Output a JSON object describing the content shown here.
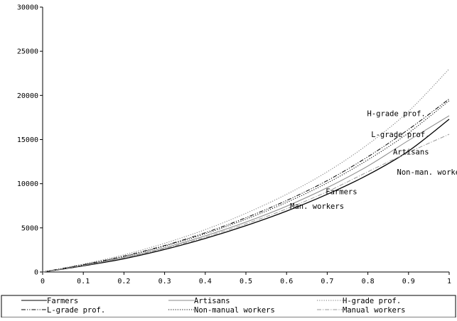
{
  "chart_data": {
    "type": "line",
    "title": "",
    "xlabel": "",
    "ylabel": "",
    "xlim": [
      0,
      1
    ],
    "ylim": [
      0,
      30000
    ],
    "x_ticks": [
      "0",
      "0.1",
      "0.2",
      "0.3",
      "0.4",
      "0.5",
      "0.6",
      "0.7",
      "0.8",
      "0.9",
      "1"
    ],
    "y_ticks": [
      "0",
      "5000",
      "10000",
      "15000",
      "20000",
      "25000",
      "30000"
    ],
    "grid": false,
    "legend_position": "bottom",
    "x": [
      0,
      0.1,
      0.2,
      0.3,
      0.4,
      0.5,
      0.6,
      0.7,
      0.8,
      0.9,
      1.0
    ],
    "series": [
      {
        "name": "Farmers",
        "color": "#000000",
        "dash": "solid",
        "values": [
          0,
          700,
          1500,
          2550,
          3800,
          5250,
          6900,
          8800,
          11000,
          13700,
          17300
        ]
      },
      {
        "name": "Artisans",
        "color": "#888888",
        "dash": "solid",
        "values": [
          0,
          760,
          1650,
          2750,
          4100,
          5650,
          7450,
          9550,
          12000,
          14900,
          17700
        ]
      },
      {
        "name": "H-grade prof.",
        "color": "#777777",
        "dash": "dotted",
        "values": [
          0,
          900,
          1950,
          3250,
          4800,
          6650,
          8800,
          11350,
          14450,
          18200,
          23000
        ]
      },
      {
        "name": "L-grade prof.",
        "color": "#000000",
        "dash": "dashdotdot",
        "values": [
          0,
          830,
          1800,
          3000,
          4450,
          6150,
          8100,
          10350,
          13050,
          16150,
          19600
        ]
      },
      {
        "name": "Non-manual workers",
        "color": "#000000",
        "dash": "dotted",
        "values": [
          0,
          810,
          1760,
          2930,
          4330,
          5980,
          7880,
          10080,
          12700,
          15750,
          19400
        ]
      },
      {
        "name": "Manual workers",
        "color": "#999999",
        "dash": "dashdot",
        "values": [
          0,
          740,
          1600,
          2650,
          3950,
          5450,
          7150,
          9100,
          11350,
          13550,
          15600
        ]
      }
    ],
    "annotations": [
      {
        "text": "H-grade prof.",
        "x": 0.87,
        "y": 17650
      },
      {
        "text": "L-grade prof.",
        "x": 0.88,
        "y": 15300
      },
      {
        "text": "Artisans",
        "x": 0.906,
        "y": 13300
      },
      {
        "text": "Non-man. workers",
        "x": 0.96,
        "y": 11000
      },
      {
        "text": "Farmers",
        "x": 0.735,
        "y": 8800
      },
      {
        "text": "Man. workers",
        "x": 0.675,
        "y": 7150
      }
    ]
  }
}
